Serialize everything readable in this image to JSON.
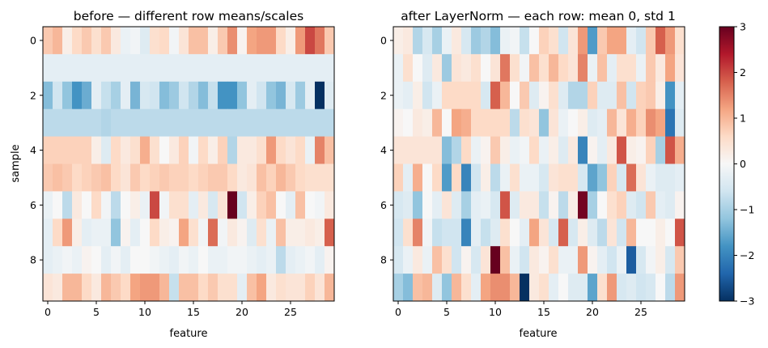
{
  "chart_data": [
    {
      "type": "heatmap",
      "title": "before — different row means/scales",
      "xlabel": "feature",
      "ylabel": "sample",
      "rows": 10,
      "cols": 30,
      "x_ticks": [
        0,
        5,
        10,
        15,
        20,
        25
      ],
      "y_ticks": [
        0,
        2,
        4,
        6,
        8
      ],
      "values": [
        [
          0.8,
          1.0,
          0.2,
          0.6,
          0.8,
          0.5,
          0.8,
          0.3,
          -0.2,
          -0.1,
          -0.4,
          0.5,
          0.6,
          -0.1,
          0.4,
          0.9,
          0.9,
          0.2,
          0.8,
          1.4,
          0.1,
          1.2,
          1.3,
          1.3,
          0.6,
          0.2,
          1.3,
          2.0,
          1.6,
          0.8
        ],
        [
          -0.3,
          -0.3,
          -0.3,
          -0.3,
          -0.3,
          -0.3,
          -0.3,
          -0.3,
          -0.3,
          -0.3,
          -0.3,
          -0.3,
          -0.3,
          -0.3,
          -0.3,
          -0.3,
          -0.3,
          -0.3,
          -0.3,
          -0.3,
          -0.3,
          -0.3,
          -0.3,
          -0.3,
          -0.3,
          -0.3,
          -0.3,
          -0.3,
          -0.3,
          -0.3
        ],
        [
          -1.3,
          -0.6,
          -1.2,
          -1.8,
          -1.5,
          -0.3,
          -0.7,
          -1.0,
          -0.3,
          -1.4,
          -0.5,
          -0.6,
          -1.3,
          -1.1,
          -0.6,
          -0.9,
          -1.3,
          -0.7,
          -1.8,
          -1.8,
          -1.2,
          -0.3,
          -0.6,
          -1.2,
          -1.4,
          -0.5,
          -1.1,
          -0.3,
          -3.0,
          -0.4
        ],
        [
          -0.8,
          -0.8,
          -0.8,
          -0.8,
          -0.8,
          -0.8,
          -0.9,
          -0.8,
          -0.8,
          -0.8,
          -0.8,
          -0.8,
          -0.8,
          -0.8,
          -0.8,
          -0.8,
          -0.8,
          -0.8,
          -0.8,
          -0.8,
          -0.8,
          -0.8,
          -0.8,
          -0.8,
          -0.8,
          -0.8,
          -0.8,
          -0.8,
          -0.8,
          -0.8
        ],
        [
          0.7,
          0.7,
          0.7,
          0.7,
          0.7,
          0.2,
          -0.4,
          0.6,
          0.3,
          0.5,
          1.1,
          0.5,
          0.0,
          0.3,
          0.7,
          -0.1,
          0.6,
          0.2,
          0.7,
          -0.9,
          0.3,
          0.3,
          0.5,
          1.3,
          0.6,
          0.4,
          0.6,
          -0.2,
          1.5,
          0.9
        ],
        [
          0.8,
          0.9,
          0.8,
          0.6,
          0.7,
          0.8,
          0.9,
          0.6,
          0.4,
          0.8,
          0.6,
          0.7,
          0.8,
          0.7,
          0.7,
          0.6,
          0.7,
          0.8,
          0.8,
          0.6,
          0.3,
          0.4,
          0.9,
          0.7,
          1.0,
          0.8,
          0.6,
          0.5,
          0.5,
          0.5
        ],
        [
          -0.2,
          0.0,
          -0.8,
          0.3,
          0.0,
          0.6,
          -0.1,
          -0.8,
          0.0,
          0.2,
          -0.2,
          2.0,
          -0.1,
          0.5,
          0.5,
          -0.3,
          0.3,
          -0.5,
          0.4,
          3.0,
          -0.6,
          0.2,
          0.7,
          0.9,
          0.0,
          -0.3,
          0.9,
          0.0,
          -0.1,
          0.3
        ],
        [
          -0.3,
          0.6,
          1.3,
          0.2,
          -0.3,
          -0.2,
          -0.2,
          -1.2,
          0.1,
          -0.3,
          0.0,
          0.6,
          0.2,
          0.1,
          1.2,
          0.5,
          -0.1,
          1.7,
          -0.1,
          0.3,
          0.1,
          -0.4,
          0.5,
          -0.2,
          0.9,
          0.2,
          0.2,
          0.3,
          0.2,
          1.8
        ],
        [
          -0.3,
          -0.2,
          -0.1,
          -0.2,
          0.1,
          0.0,
          -0.3,
          -0.1,
          -0.3,
          0.0,
          0.0,
          -0.1,
          -0.2,
          -0.3,
          -0.1,
          -0.2,
          0.0,
          -0.2,
          -0.2,
          -0.1,
          -0.1,
          -0.2,
          -0.3,
          -0.2,
          -0.8,
          -0.3,
          -0.2,
          -0.1,
          -0.3,
          0.1
        ],
        [
          0.4,
          0.3,
          1.0,
          1.0,
          0.6,
          0.3,
          1.0,
          0.8,
          0.6,
          1.2,
          1.3,
          1.3,
          1.0,
          -0.7,
          0.9,
          0.9,
          0.6,
          0.8,
          0.5,
          0.5,
          -0.3,
          0.9,
          1.2,
          0.3,
          0.5,
          0.4,
          0.4,
          0.7,
          0.4,
          1.0
        ]
      ]
    },
    {
      "type": "heatmap",
      "title": "after LayerNorm — each row: mean 0, std 1",
      "xlabel": "feature",
      "ylabel": "",
      "rows": 10,
      "cols": 30,
      "x_ticks": [
        0,
        5,
        10,
        15,
        20,
        25
      ],
      "y_ticks": [
        0,
        2,
        4,
        6,
        8
      ],
      "values": [
        [
          0.2,
          0.3,
          -0.9,
          -0.5,
          -1.0,
          -0.2,
          0.3,
          -0.5,
          -1.1,
          -0.9,
          -1.3,
          -0.2,
          -0.1,
          -0.7,
          0.0,
          0.7,
          0.5,
          -0.6,
          0.4,
          1.3,
          -1.7,
          0.8,
          1.2,
          1.2,
          -0.3,
          -0.6,
          0.8,
          1.8,
          1.3,
          0.5
        ],
        [
          -0.2,
          0.5,
          0.0,
          -0.4,
          0.3,
          -1.1,
          0.4,
          0.3,
          0.5,
          0.0,
          0.4,
          1.6,
          0.5,
          -0.1,
          0.9,
          0.5,
          1.0,
          0.6,
          0.4,
          1.5,
          -0.2,
          0.9,
          -0.3,
          0.5,
          0.5,
          -0.2,
          0.8,
          0.3,
          1.2,
          0.4
        ],
        [
          -0.2,
          -0.3,
          0.2,
          -0.6,
          -0.2,
          0.6,
          0.6,
          0.6,
          0.6,
          -0.5,
          1.8,
          1.0,
          0.0,
          0.8,
          -0.4,
          0.1,
          0.5,
          -0.4,
          -0.9,
          -0.9,
          0.7,
          -0.4,
          -0.4,
          0.9,
          -0.6,
          0.7,
          0.8,
          0.2,
          -1.8,
          -0.3
        ],
        [
          0.1,
          0.0,
          0.3,
          0.2,
          1.0,
          0.0,
          1.2,
          1.1,
          0.6,
          0.6,
          0.6,
          0.6,
          -0.8,
          0.5,
          0.4,
          -1.2,
          0.4,
          -0.2,
          0.0,
          0.2,
          -0.4,
          -0.3,
          1.0,
          0.4,
          1.1,
          0.7,
          1.4,
          1.2,
          -2.2,
          -0.4
        ],
        [
          0.4,
          0.4,
          0.4,
          0.4,
          0.4,
          -1.3,
          -0.9,
          0.6,
          -0.2,
          0.1,
          0.8,
          0.2,
          -0.2,
          -0.1,
          0.6,
          -0.2,
          0.2,
          -0.4,
          0.3,
          -2.0,
          0.1,
          -0.3,
          0.3,
          1.9,
          0.2,
          0.1,
          0.7,
          -1.0,
          1.9,
          1.1
        ],
        [
          0.7,
          -0.3,
          1.1,
          0.0,
          0.6,
          -1.7,
          0.6,
          -2.0,
          -0.6,
          0.2,
          -0.8,
          -0.2,
          0.5,
          -0.2,
          -0.2,
          -0.5,
          0.4,
          0.5,
          0.5,
          -0.5,
          -1.6,
          -1.2,
          0.7,
          -0.5,
          1.7,
          0.4,
          -0.2,
          -0.4,
          -0.4,
          -0.3
        ],
        [
          -0.5,
          -0.4,
          -1.2,
          0.0,
          -0.3,
          0.4,
          -0.4,
          -1.0,
          -0.3,
          -0.2,
          -0.5,
          1.9,
          -0.4,
          0.3,
          0.3,
          -0.7,
          0.1,
          -0.8,
          0.2,
          2.9,
          -1.0,
          0.0,
          0.5,
          0.7,
          -0.4,
          -0.6,
          0.8,
          -0.3,
          -0.4,
          0.1
        ],
        [
          -0.6,
          0.5,
          1.5,
          -0.1,
          -0.7,
          -0.6,
          -0.6,
          -2.0,
          -0.3,
          -0.7,
          -0.4,
          0.5,
          0.0,
          -0.3,
          1.2,
          0.4,
          -0.5,
          1.8,
          -0.5,
          0.2,
          -0.4,
          -0.8,
          0.4,
          -0.6,
          1.0,
          0.0,
          0.0,
          0.2,
          0.0,
          1.9
        ],
        [
          -0.5,
          -0.2,
          0.3,
          -0.2,
          0.9,
          0.5,
          -0.6,
          0.1,
          -0.5,
          0.4,
          3.0,
          0.9,
          -0.2,
          -0.6,
          0.3,
          0.1,
          0.5,
          -0.2,
          -0.2,
          1.3,
          0.1,
          -0.3,
          -0.6,
          -0.2,
          -2.5,
          -0.5,
          -0.1,
          0.2,
          -0.5,
          0.8
        ],
        [
          -1.0,
          -1.3,
          0.9,
          1.0,
          -0.4,
          -1.2,
          1.0,
          0.5,
          -0.3,
          1.2,
          1.4,
          1.4,
          1.0,
          -3.0,
          0.3,
          0.5,
          -0.3,
          0.0,
          -0.4,
          -0.4,
          -1.6,
          0.5,
          1.3,
          -0.5,
          -0.4,
          -0.6,
          -0.5,
          0.0,
          -0.8,
          1.3
        ]
      ]
    }
  ],
  "colorbar": {
    "colormap": "RdBu_r",
    "vmin": -3,
    "vmax": 3,
    "ticks": [
      3,
      2,
      1,
      0,
      -1,
      -2,
      -3
    ],
    "tick_labels": [
      "3",
      "2",
      "1",
      "0",
      "−1",
      "−2",
      "−3"
    ]
  }
}
